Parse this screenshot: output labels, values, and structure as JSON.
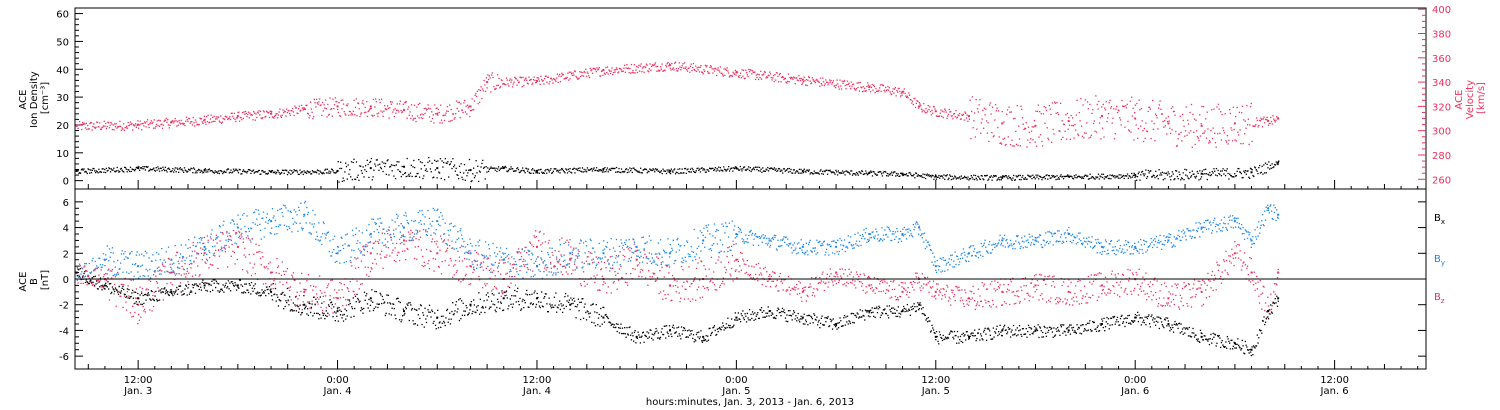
{
  "colors": {
    "black": "#000000",
    "red": "#e8325f",
    "blue": "#1e88e5"
  },
  "time_axis": {
    "title": "hours:minutes, Jan. 3, 2013 - Jan. 6, 2013",
    "ticks": [
      {
        "t": 12,
        "time": "12:00",
        "day": "Jan. 3"
      },
      {
        "t": 24,
        "time": "0:00",
        "day": "Jan. 4"
      },
      {
        "t": 36,
        "time": "12:00",
        "day": "Jan. 4"
      },
      {
        "t": 48,
        "time": "0:00",
        "day": "Jan. 5"
      },
      {
        "t": 60,
        "time": "12:00",
        "day": "Jan. 5"
      },
      {
        "t": 72,
        "time": "0:00",
        "day": "Jan. 6"
      },
      {
        "t": 84,
        "time": "12:00",
        "day": "Jan. 6"
      }
    ]
  },
  "top_panel": {
    "left_axis": {
      "title_lines": [
        "ACE",
        "Ion Density",
        "[cm⁻³]"
      ],
      "ticks": [
        "0",
        "10",
        "20",
        "30",
        "40",
        "50",
        "60"
      ],
      "range": [
        -3,
        62
      ]
    },
    "right_axis": {
      "title_lines": [
        "ACE",
        "Velocity",
        "[km/s]"
      ],
      "ticks": [
        "260",
        "280",
        "300",
        "320",
        "340",
        "360",
        "380",
        "400"
      ],
      "range": [
        252,
        401
      ]
    }
  },
  "bottom_panel": {
    "axis": {
      "title_lines": [
        "ACE",
        "B",
        "[nT]"
      ],
      "ticks": [
        "-6",
        "-4",
        "-2",
        "0",
        "2",
        "4",
        "6"
      ],
      "range": [
        -7,
        7
      ]
    },
    "legend": [
      {
        "label": "B",
        "sub": "x",
        "color": "#000000"
      },
      {
        "label": "B",
        "sub": "y",
        "color": "#1e88e5"
      },
      {
        "label": "B",
        "sub": "z",
        "color": "#e8325f"
      }
    ]
  },
  "chart_data": [
    {
      "type": "scatter",
      "title": "",
      "xlabel": "hours:minutes, Jan. 3, 2013 - Jan. 6, 2013",
      "x_unit": "hours since Jan. 3 00:00",
      "xlim": [
        8.2,
        89.5
      ],
      "ylabel": "ACE Ion Density [cm^-3]",
      "ylim": [
        -3,
        62
      ],
      "y2label": "ACE Velocity [km/s]",
      "y2lim": [
        252,
        401
      ],
      "series": [
        {
          "name": "Ion Density",
          "axis": "left",
          "color": "#000000",
          "x": [
            8.3,
            12,
            16,
            20,
            24,
            26,
            28,
            30,
            32,
            34,
            36,
            40,
            44,
            48,
            52,
            56,
            58,
            60,
            64,
            68,
            72,
            76,
            79,
            80.6
          ],
          "y": [
            3.5,
            4.5,
            3.8,
            3.2,
            3.5,
            4.5,
            5.0,
            4.5,
            3.8,
            4.5,
            3.5,
            4.2,
            3.5,
            4.5,
            3.5,
            2.8,
            2.5,
            1.5,
            1.2,
            1.5,
            2.0,
            2.5,
            3.0,
            6.5
          ]
        },
        {
          "name": "Velocity",
          "axis": "right",
          "color": "#e8325f",
          "x": [
            8.3,
            12,
            14,
            16,
            18,
            20,
            22,
            24,
            26,
            28,
            30,
            32,
            33,
            36,
            40,
            44,
            48,
            52,
            56,
            58,
            59,
            60,
            62,
            64,
            66,
            68,
            70,
            72,
            74,
            76,
            78,
            80,
            80.6
          ],
          "y": [
            304,
            305,
            307,
            309,
            312,
            314,
            318,
            320,
            320,
            317,
            314,
            320,
            340,
            341,
            350,
            354,
            348,
            342,
            336,
            332,
            320,
            316,
            312,
            306,
            304,
            308,
            312,
            310,
            306,
            304,
            306,
            308,
            310
          ]
        }
      ]
    },
    {
      "type": "scatter",
      "title": "",
      "xlabel": "hours:minutes, Jan. 3, 2013 - Jan. 6, 2013",
      "x_unit": "hours since Jan. 3 00:00",
      "xlim": [
        8.2,
        89.5
      ],
      "ylabel": "ACE B [nT]",
      "ylim": [
        -7,
        7
      ],
      "series": [
        {
          "name": "Bx",
          "color": "#000000",
          "x": [
            8.3,
            10,
            12,
            14,
            16,
            18,
            20,
            22,
            24,
            26,
            28,
            30,
            32,
            34,
            36,
            38,
            40,
            42,
            44,
            46,
            48,
            50,
            52,
            54,
            56,
            58,
            59,
            60,
            62,
            64,
            66,
            68,
            70,
            72,
            74,
            76,
            78,
            79,
            80,
            80.6
          ],
          "y": [
            0.5,
            -0.5,
            -1.5,
            -1.0,
            -0.5,
            -0.5,
            -1.0,
            -2.0,
            -2.5,
            -1.5,
            -2.5,
            -3.0,
            -2.0,
            -1.5,
            -1.5,
            -2.0,
            -3.0,
            -4.5,
            -4.0,
            -4.5,
            -3.0,
            -2.5,
            -3.0,
            -3.5,
            -2.5,
            -2.5,
            -2.0,
            -4.5,
            -4.5,
            -4.0,
            -4.0,
            -4.0,
            -3.5,
            -3.0,
            -3.5,
            -4.5,
            -5.0,
            -5.5,
            -2.5,
            -1.5
          ]
        },
        {
          "name": "By",
          "color": "#1e88e5",
          "x": [
            8.3,
            10,
            12,
            14,
            16,
            18,
            20,
            22,
            24,
            26,
            28,
            30,
            32,
            34,
            36,
            38,
            40,
            42,
            44,
            46,
            48,
            50,
            52,
            54,
            56,
            58,
            59,
            60,
            62,
            64,
            66,
            68,
            70,
            72,
            74,
            76,
            78,
            79,
            80,
            80.6
          ],
          "y": [
            0.5,
            1.5,
            1.0,
            1.5,
            2.5,
            4.0,
            4.5,
            5.0,
            2.0,
            3.5,
            4.0,
            4.5,
            2.0,
            1.5,
            1.0,
            2.0,
            2.0,
            2.5,
            2.0,
            3.0,
            3.5,
            3.0,
            2.5,
            2.5,
            3.5,
            3.5,
            4.0,
            1.0,
            2.0,
            3.0,
            3.0,
            3.5,
            2.5,
            2.5,
            3.0,
            4.0,
            4.5,
            3.0,
            5.5,
            5.0
          ]
        },
        {
          "name": "Bz",
          "color": "#e8325f",
          "x": [
            8.3,
            10,
            12,
            14,
            16,
            18,
            20,
            22,
            24,
            26,
            28,
            30,
            32,
            34,
            36,
            38,
            40,
            42,
            44,
            46,
            48,
            50,
            52,
            54,
            56,
            58,
            59,
            60,
            62,
            64,
            66,
            68,
            70,
            72,
            74,
            76,
            78,
            79,
            80,
            80.6
          ],
          "y": [
            0.5,
            0.0,
            -2.0,
            0.5,
            2.0,
            2.5,
            0.5,
            -1.0,
            -1.5,
            2.0,
            3.0,
            2.0,
            1.0,
            0.0,
            2.5,
            1.5,
            0.0,
            1.5,
            -0.5,
            0.0,
            1.5,
            0.0,
            -1.0,
            0.5,
            -0.5,
            -1.0,
            0.0,
            -1.0,
            -1.5,
            -1.0,
            -0.5,
            -1.0,
            -0.5,
            0.0,
            -1.5,
            -1.0,
            2.0,
            0.5,
            -2.5,
            0.5
          ]
        }
      ]
    }
  ]
}
